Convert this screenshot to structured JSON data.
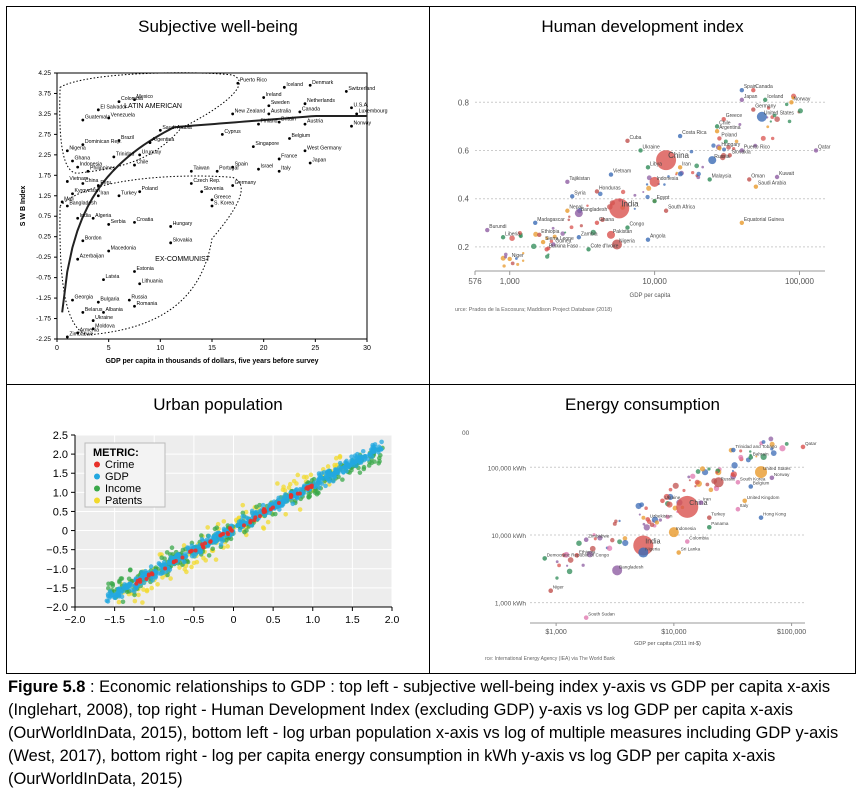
{
  "figure": {
    "label": "Figure 5.8",
    "text": " : Economic relationships to GDP : top left - subjective well-being index y-axis vs GDP per capita x-axis (Inglehart, 2008), top right - Human Development Index (excluding GDP) y-axis vs log GDP per capita x-axis (OurWorldInData, 2015), bottom left - log urban population x-axis vs log of multiple measures including GDP y-axis (West, 2017), bottom right - log per capita energy consumption in kWh y-axis vs log GDP per capita x-axis (OurWorldInData, 2015)"
  },
  "colors": {
    "crime": "#e8312a",
    "gdp": "#23a8e0",
    "income": "#3aa84a",
    "patents": "#f2d92c",
    "bubble_red": "#d9534f",
    "bubble_green": "#2e8b57",
    "bubble_blue": "#3b6bb5",
    "bubble_orange": "#e89a2c"
  },
  "chart_data": [
    {
      "type": "scatter",
      "title": "Subjective well-being",
      "xlabel": "GDP per capita in thousands of dollars, five years before survey",
      "ylabel": "S W B Index",
      "xlim": [
        0,
        30
      ],
      "ylim": [
        -2.25,
        4.25
      ],
      "xticks": [
        "0",
        "5",
        "10",
        "15",
        "20",
        "25",
        "30"
      ],
      "yticks": [
        "4.25",
        "3.75",
        "3.25",
        "2.75",
        "2.25",
        "1.75",
        "1.25",
        "0.75",
        "0.25",
        "-0.25",
        "-0.75",
        "-1.25",
        "-1.75",
        "-2.25"
      ],
      "group_labels": [
        "LATIN AMERICAN",
        "EX-COMMUNIST"
      ],
      "points": [
        {
          "name": "Puerto Rico",
          "x": 17.5,
          "y": 4.0
        },
        {
          "name": "Iceland",
          "x": 22,
          "y": 3.9
        },
        {
          "name": "Denmark",
          "x": 24.5,
          "y": 3.95
        },
        {
          "name": "Switzerland",
          "x": 28,
          "y": 3.8
        },
        {
          "name": "Colombia",
          "x": 6,
          "y": 3.55
        },
        {
          "name": "Mexico",
          "x": 7.5,
          "y": 3.6
        },
        {
          "name": "Ireland",
          "x": 20,
          "y": 3.65
        },
        {
          "name": "Netherlands",
          "x": 24,
          "y": 3.5
        },
        {
          "name": "U.S.A.",
          "x": 28.5,
          "y": 3.4
        },
        {
          "name": "El Salvador",
          "x": 4,
          "y": 3.35
        },
        {
          "name": "Sweden",
          "x": 20.5,
          "y": 3.45
        },
        {
          "name": "Luxembourg",
          "x": 29,
          "y": 3.25
        },
        {
          "name": "Guatemala",
          "x": 2.5,
          "y": 3.1
        },
        {
          "name": "Venezuela",
          "x": 5,
          "y": 3.15
        },
        {
          "name": "New Zealand",
          "x": 17,
          "y": 3.25
        },
        {
          "name": "Australia",
          "x": 20.5,
          "y": 3.25
        },
        {
          "name": "Canada",
          "x": 23.5,
          "y": 3.3
        },
        {
          "name": "Finland",
          "x": 19.5,
          "y": 3.0
        },
        {
          "name": "Britain",
          "x": 21.5,
          "y": 3.05
        },
        {
          "name": "Austria",
          "x": 24,
          "y": 3.0
        },
        {
          "name": "Norway",
          "x": 28.5,
          "y": 2.95
        },
        {
          "name": "Saudi Arabia",
          "x": 10,
          "y": 2.85
        },
        {
          "name": "Cyprus",
          "x": 16,
          "y": 2.75
        },
        {
          "name": "Belgium",
          "x": 22.5,
          "y": 2.65
        },
        {
          "name": "Brazil",
          "x": 6,
          "y": 2.6
        },
        {
          "name": "Argentina",
          "x": 9,
          "y": 2.55
        },
        {
          "name": "Singapore",
          "x": 19,
          "y": 2.45
        },
        {
          "name": "West Germany",
          "x": 24,
          "y": 2.35
        },
        {
          "name": "Nigeria",
          "x": 1,
          "y": 2.35
        },
        {
          "name": "Dominican Rep.",
          "x": 2.5,
          "y": 2.5
        },
        {
          "name": "Trinidad",
          "x": 5.5,
          "y": 2.2
        },
        {
          "name": "Uruguay",
          "x": 8,
          "y": 2.25
        },
        {
          "name": "Chile",
          "x": 7.5,
          "y": 2.0
        },
        {
          "name": "France",
          "x": 21.5,
          "y": 2.15
        },
        {
          "name": "Japan",
          "x": 24.5,
          "y": 2.05
        },
        {
          "name": "Ghana",
          "x": 1.5,
          "y": 2.1
        },
        {
          "name": "Indonesia",
          "x": 2,
          "y": 1.95
        },
        {
          "name": "Philippines",
          "x": 3,
          "y": 1.85
        },
        {
          "name": "Taiwan",
          "x": 13,
          "y": 1.85
        },
        {
          "name": "Portugal",
          "x": 15.5,
          "y": 1.85
        },
        {
          "name": "Spain",
          "x": 17,
          "y": 1.95
        },
        {
          "name": "Israel",
          "x": 19.5,
          "y": 1.9
        },
        {
          "name": "Italy",
          "x": 21.5,
          "y": 1.85
        },
        {
          "name": "Vietnam",
          "x": 1,
          "y": 1.6
        },
        {
          "name": "China",
          "x": 2.5,
          "y": 1.55
        },
        {
          "name": "Peru",
          "x": 4,
          "y": 1.5
        },
        {
          "name": "Czech Rep.",
          "x": 13,
          "y": 1.55
        },
        {
          "name": "Slovenia",
          "x": 14,
          "y": 1.35
        },
        {
          "name": "Germany",
          "x": 17,
          "y": 1.5
        },
        {
          "name": "Kyrgyzstan",
          "x": 1.5,
          "y": 1.3
        },
        {
          "name": "Iran",
          "x": 4,
          "y": 1.25
        },
        {
          "name": "Turkey",
          "x": 6,
          "y": 1.25
        },
        {
          "name": "Poland",
          "x": 8,
          "y": 1.35
        },
        {
          "name": "Greece",
          "x": 15,
          "y": 1.15
        },
        {
          "name": "Mali",
          "x": 0.5,
          "y": 1.1
        },
        {
          "name": "Bangladesh",
          "x": 1,
          "y": 1.0
        },
        {
          "name": "S. Korea",
          "x": 15,
          "y": 1.0
        },
        {
          "name": "Croatia",
          "x": 7.5,
          "y": 0.6
        },
        {
          "name": "India",
          "x": 2,
          "y": 0.7
        },
        {
          "name": "Algeria",
          "x": 3.5,
          "y": 0.7
        },
        {
          "name": "Serbia",
          "x": 5,
          "y": 0.55
        },
        {
          "name": "Hungary",
          "x": 11,
          "y": 0.5
        },
        {
          "name": "Slovakia",
          "x": 11,
          "y": 0.1
        },
        {
          "name": "Bordon",
          "x": 2.5,
          "y": 0.15
        },
        {
          "name": "Macedonia",
          "x": 5,
          "y": -0.1
        },
        {
          "name": "Azerbaijan",
          "x": 2,
          "y": -0.3
        },
        {
          "name": "Latvia",
          "x": 4.5,
          "y": -0.8
        },
        {
          "name": "Estonia",
          "x": 7.5,
          "y": -0.6
        },
        {
          "name": "Lithuania",
          "x": 8,
          "y": -0.9
        },
        {
          "name": "Georgia",
          "x": 1.5,
          "y": -1.3
        },
        {
          "name": "Bulgaria",
          "x": 4,
          "y": -1.35
        },
        {
          "name": "Russia",
          "x": 7,
          "y": -1.3
        },
        {
          "name": "Romania",
          "x": 7.5,
          "y": -1.45
        },
        {
          "name": "Belarus",
          "x": 2.5,
          "y": -1.6
        },
        {
          "name": "Albania",
          "x": 4.5,
          "y": -1.6
        },
        {
          "name": "Ukraine",
          "x": 3.5,
          "y": -1.8
        },
        {
          "name": "Moldova",
          "x": 3.5,
          "y": -2.0
        },
        {
          "name": "Armenia",
          "x": 2,
          "y": -2.1
        },
        {
          "name": "Zimbabwe",
          "x": 1,
          "y": -2.2
        }
      ]
    },
    {
      "type": "scatter",
      "title": "Human development index",
      "xlabel": "GDP per capita",
      "xscale": "log",
      "xlim": [
        576,
        150000
      ],
      "ylim": [
        0.1,
        0.88
      ],
      "xticks": [
        "576",
        "1,000",
        "10,000",
        "100,000"
      ],
      "yticks": [
        "0.8",
        "0.6",
        "0.4",
        "0.2"
      ],
      "source": "urce: Prados de la Escosura; Maddison Project Database (2018)",
      "points": [
        {
          "name": "Spain",
          "x": 40000,
          "y": 0.85
        },
        {
          "name": "Canada",
          "x": 48000,
          "y": 0.85
        },
        {
          "name": "Iceland",
          "x": 58000,
          "y": 0.81
        },
        {
          "name": "Norway",
          "x": 88000,
          "y": 0.8
        },
        {
          "name": "Japan",
          "x": 40000,
          "y": 0.81
        },
        {
          "name": "Germany",
          "x": 48000,
          "y": 0.77
        },
        {
          "name": "United States",
          "x": 55000,
          "y": 0.74
        },
        {
          "name": "Greece",
          "x": 30000,
          "y": 0.73
        },
        {
          "name": "Chile",
          "x": 27000,
          "y": 0.7
        },
        {
          "name": "Argentina",
          "x": 27000,
          "y": 0.68
        },
        {
          "name": "Qatar",
          "x": 130000,
          "y": 0.6
        },
        {
          "name": "Cuba",
          "x": 6500,
          "y": 0.64
        },
        {
          "name": "Costa Rica",
          "x": 15000,
          "y": 0.66
        },
        {
          "name": "Poland",
          "x": 28000,
          "y": 0.65
        },
        {
          "name": "Ukraine",
          "x": 8000,
          "y": 0.6
        },
        {
          "name": "Hungary",
          "x": 28000,
          "y": 0.61
        },
        {
          "name": "Puerto Rico",
          "x": 40000,
          "y": 0.6
        },
        {
          "name": "Slovakia",
          "x": 33000,
          "y": 0.58
        },
        {
          "name": "Russia",
          "x": 25000,
          "y": 0.56
        },
        {
          "name": "China",
          "x": 12000,
          "y": 0.56
        },
        {
          "name": "Libya",
          "x": 9000,
          "y": 0.53
        },
        {
          "name": "Iran",
          "x": 15000,
          "y": 0.53
        },
        {
          "name": "Kuwait",
          "x": 70000,
          "y": 0.49
        },
        {
          "name": "Oman",
          "x": 45000,
          "y": 0.48
        },
        {
          "name": "Vietnam",
          "x": 5000,
          "y": 0.5
        },
        {
          "name": "Indonesia",
          "x": 10000,
          "y": 0.47
        },
        {
          "name": "Malaysia",
          "x": 24000,
          "y": 0.48
        },
        {
          "name": "Saudi Arabia",
          "x": 50000,
          "y": 0.45
        },
        {
          "name": "Tajikistan",
          "x": 2500,
          "y": 0.47
        },
        {
          "name": "Honduras",
          "x": 4000,
          "y": 0.43
        },
        {
          "name": "Syria",
          "x": 2700,
          "y": 0.41
        },
        {
          "name": "India",
          "x": 5700,
          "y": 0.36
        },
        {
          "name": "Egypt",
          "x": 10000,
          "y": 0.39
        },
        {
          "name": "Nepal",
          "x": 2500,
          "y": 0.35
        },
        {
          "name": "Bangladesh",
          "x": 3000,
          "y": 0.34
        },
        {
          "name": "South Africa",
          "x": 12000,
          "y": 0.35
        },
        {
          "name": "Madagascar",
          "x": 1500,
          "y": 0.3
        },
        {
          "name": "Ghana",
          "x": 4000,
          "y": 0.3
        },
        {
          "name": "Congo",
          "x": 6500,
          "y": 0.28
        },
        {
          "name": "Equatorial Guinea",
          "x": 40000,
          "y": 0.3
        },
        {
          "name": "Burundi",
          "x": 700,
          "y": 0.27
        },
        {
          "name": "Ethiopia",
          "x": 1600,
          "y": 0.25
        },
        {
          "name": "Zambia",
          "x": 3000,
          "y": 0.24
        },
        {
          "name": "Pakistan",
          "x": 5000,
          "y": 0.25
        },
        {
          "name": "Liberia",
          "x": 900,
          "y": 0.24
        },
        {
          "name": "Sierra Leone",
          "x": 1700,
          "y": 0.22
        },
        {
          "name": "Guinea",
          "x": 2000,
          "y": 0.21
        },
        {
          "name": "Nigeria",
          "x": 5500,
          "y": 0.21
        },
        {
          "name": "Angola",
          "x": 9000,
          "y": 0.23
        },
        {
          "name": "Burkina Faso",
          "x": 1800,
          "y": 0.19
        },
        {
          "name": "Cote d'Ivoire",
          "x": 3500,
          "y": 0.19
        },
        {
          "name": "Niger",
          "x": 1000,
          "y": 0.15
        }
      ]
    },
    {
      "type": "scatter",
      "title": "Urban population",
      "legend_title": "METRIC:",
      "legend_position": "top-left",
      "xlim": [
        -2.0,
        2.0
      ],
      "ylim": [
        -2.0,
        2.5
      ],
      "xticks": [
        "−2.0",
        "−1.5",
        "−1.0",
        "−0.5",
        "0",
        "0.5",
        "1.0",
        "1.5",
        "2.0"
      ],
      "yticks": [
        "2.5",
        "2.0",
        "1.5",
        "1.0",
        "0.5",
        "0",
        "−0.5",
        "−1.0",
        "−1.5",
        "−2.0"
      ],
      "series": [
        {
          "name": "Crime",
          "slope": 1.15,
          "spread": 0.05
        },
        {
          "name": "GDP",
          "slope": 1.15,
          "spread": 0.12
        },
        {
          "name": "Income",
          "slope": 1.1,
          "spread": 0.2
        },
        {
          "name": "Patents",
          "slope": 1.2,
          "spread": 0.35
        }
      ]
    },
    {
      "type": "scatter",
      "title": "Energy consumption",
      "xlabel": "GDP per capita (2011 int-$)",
      "xscale": "log",
      "yscale": "log",
      "xlim": [
        600,
        130000
      ],
      "ylim": [
        500,
        300000
      ],
      "xticks": [
        "$1,000",
        "$10,000",
        "$100,000"
      ],
      "yticks": [
        "100,000 kWh",
        "10,000 kWh",
        "1,000 kWh"
      ],
      "top_label": "00",
      "source": "rce: International Energy Agency (IEA) via The World Bank",
      "points": [
        {
          "name": "Trinidad and Tobago",
          "x": 32000,
          "y": 180000
        },
        {
          "name": "Qatar",
          "x": 125000,
          "y": 200000
        },
        {
          "name": "Bahrain",
          "x": 45000,
          "y": 140000
        },
        {
          "name": "United States",
          "x": 55000,
          "y": 85000
        },
        {
          "name": "Norway",
          "x": 68000,
          "y": 70000
        },
        {
          "name": "Russia",
          "x": 24000,
          "y": 60000
        },
        {
          "name": "South Korea",
          "x": 35000,
          "y": 60000
        },
        {
          "name": "Belgium",
          "x": 45000,
          "y": 52000
        },
        {
          "name": "Ukraine",
          "x": 8000,
          "y": 32000
        },
        {
          "name": "China",
          "x": 13000,
          "y": 26000
        },
        {
          "name": "United Kingdom",
          "x": 40000,
          "y": 32000
        },
        {
          "name": "Iran",
          "x": 17000,
          "y": 30000
        },
        {
          "name": "Turkey",
          "x": 20000,
          "y": 18000
        },
        {
          "name": "Italy",
          "x": 35000,
          "y": 24000
        },
        {
          "name": "Hong Kong",
          "x": 55000,
          "y": 18000
        },
        {
          "name": "Uzbekistan",
          "x": 6000,
          "y": 17000
        },
        {
          "name": "Panama",
          "x": 20000,
          "y": 13000
        },
        {
          "name": "Indonesia",
          "x": 10000,
          "y": 11000
        },
        {
          "name": "Zimbabwe",
          "x": 1800,
          "y": 8500
        },
        {
          "name": "India",
          "x": 5500,
          "y": 7000
        },
        {
          "name": "Colombia",
          "x": 13000,
          "y": 8000
        },
        {
          "name": "Nigeria",
          "x": 5500,
          "y": 5500
        },
        {
          "name": "Ethiopia",
          "x": 1500,
          "y": 5000
        },
        {
          "name": "Democratic Republic of Congo",
          "x": 800,
          "y": 4500
        },
        {
          "name": "Sri Lanka",
          "x": 11000,
          "y": 5500
        },
        {
          "name": "Bangladesh",
          "x": 3300,
          "y": 3000
        },
        {
          "name": "Niger",
          "x": 900,
          "y": 1500
        },
        {
          "name": "South Sudan",
          "x": 1800,
          "y": 600
        }
      ]
    }
  ]
}
